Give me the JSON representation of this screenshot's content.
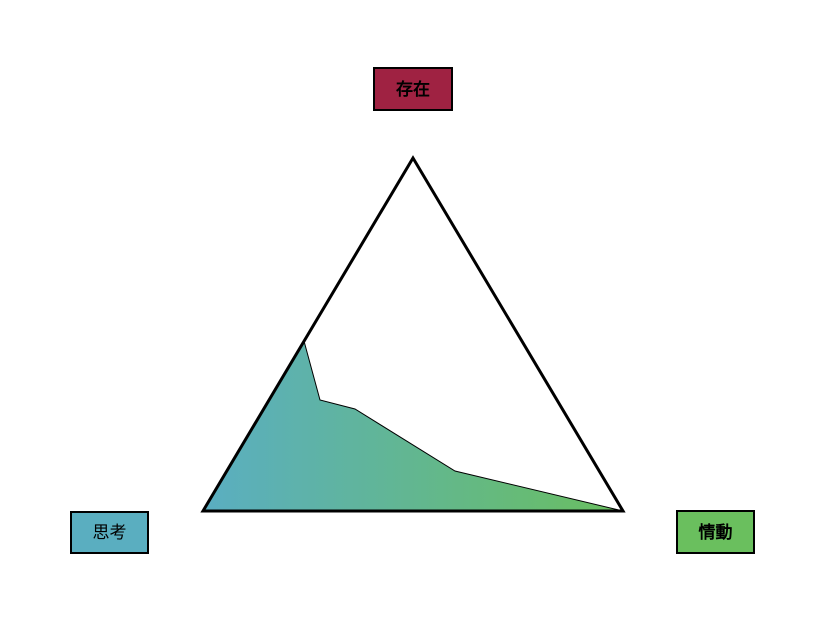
{
  "nodes": [
    {
      "label": "存在"
    },
    {
      "label": "思考"
    },
    {
      "label": "情動"
    }
  ]
}
